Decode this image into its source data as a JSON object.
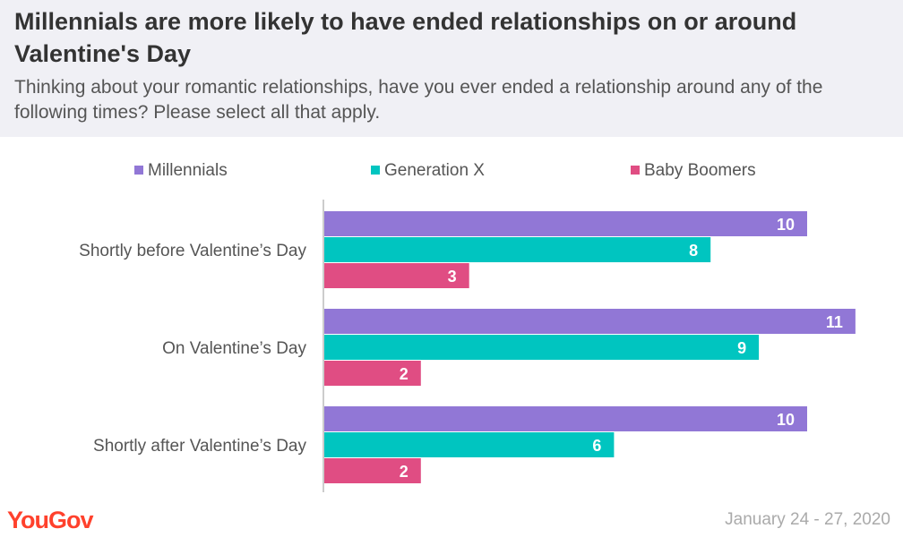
{
  "header": {
    "title": "Millennials are more likely to have ended relationships on or around Valentine's Day",
    "subtitle": "Thinking about your romantic relationships, have you ever ended a relationship around any of the following times? Please select all that apply."
  },
  "legend": [
    {
      "label": "Millennials",
      "color": "#9177d6"
    },
    {
      "label": "Generation X",
      "color": "#00c5c0"
    },
    {
      "label": "Baby Boomers",
      "color": "#e04d83"
    }
  ],
  "chart_data": {
    "type": "bar",
    "orientation": "horizontal",
    "categories": [
      "Shortly before Valentine’s Day",
      "On Valentine’s Day",
      "Shortly after Valentine’s Day"
    ],
    "series": [
      {
        "name": "Millennials",
        "color": "#9177d6",
        "values": [
          10,
          11,
          10
        ]
      },
      {
        "name": "Generation X",
        "color": "#00c5c0",
        "values": [
          8,
          9,
          6
        ]
      },
      {
        "name": "Baby Boomers",
        "color": "#e04d83",
        "values": [
          3,
          2,
          2
        ]
      }
    ],
    "xlim": [
      0,
      11
    ],
    "grid": false,
    "legend_position": "top",
    "data_labels": true
  },
  "footer": {
    "logo": "YouGov",
    "date": "January 24 - 27, 2020"
  }
}
